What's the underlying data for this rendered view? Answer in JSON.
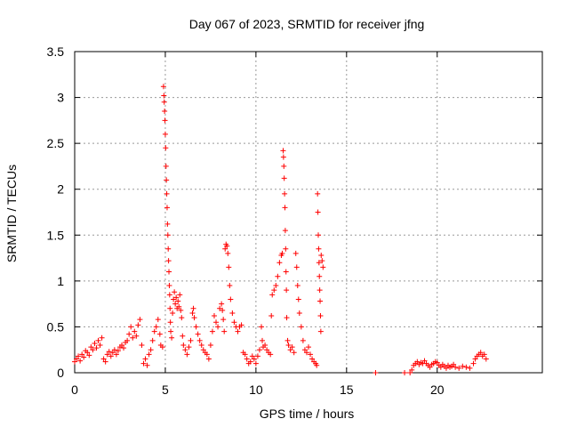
{
  "chart_data": {
    "type": "scatter",
    "title": "Day 067 of 2023, SRMTID for receiver jfng",
    "xlabel": "GPS time / hours",
    "ylabel": "SRMTID / TECUs",
    "xlim": [
      0,
      25.8
    ],
    "ylim": [
      0,
      3.5
    ],
    "xticks": [
      0,
      5,
      10,
      15,
      20
    ],
    "yticks": [
      0,
      0.5,
      1,
      1.5,
      2,
      2.5,
      3,
      3.5
    ],
    "xtick_labels": [
      "0",
      "5",
      "10",
      "15",
      "20"
    ],
    "ytick_labels": [
      "0",
      "0.5",
      "1",
      "1.5",
      "2",
      "2.5",
      "3",
      "3.5"
    ],
    "grid": true,
    "marker": "+",
    "color": "#ff0000",
    "series": [
      {
        "name": "SRMTID",
        "points": [
          [
            0.0,
            0.12
          ],
          [
            0.1,
            0.15
          ],
          [
            0.2,
            0.18
          ],
          [
            0.3,
            0.13
          ],
          [
            0.4,
            0.2
          ],
          [
            0.5,
            0.17
          ],
          [
            0.6,
            0.24
          ],
          [
            0.7,
            0.22
          ],
          [
            0.8,
            0.19
          ],
          [
            0.9,
            0.28
          ],
          [
            1.0,
            0.25
          ],
          [
            1.1,
            0.32
          ],
          [
            1.2,
            0.27
          ],
          [
            1.3,
            0.35
          ],
          [
            1.4,
            0.3
          ],
          [
            1.5,
            0.38
          ],
          [
            1.6,
            0.15
          ],
          [
            1.7,
            0.12
          ],
          [
            1.8,
            0.2
          ],
          [
            1.9,
            0.23
          ],
          [
            2.0,
            0.18
          ],
          [
            2.1,
            0.22
          ],
          [
            2.2,
            0.25
          ],
          [
            2.3,
            0.2
          ],
          [
            2.4,
            0.24
          ],
          [
            2.5,
            0.28
          ],
          [
            2.6,
            0.3
          ],
          [
            2.7,
            0.27
          ],
          [
            2.8,
            0.33
          ],
          [
            2.9,
            0.35
          ],
          [
            3.0,
            0.42
          ],
          [
            3.1,
            0.5
          ],
          [
            3.2,
            0.38
          ],
          [
            3.3,
            0.45
          ],
          [
            3.4,
            0.4
          ],
          [
            3.5,
            0.52
          ],
          [
            3.6,
            0.58
          ],
          [
            3.7,
            0.3
          ],
          [
            3.8,
            0.1
          ],
          [
            3.9,
            0.15
          ],
          [
            4.0,
            0.08
          ],
          [
            4.1,
            0.2
          ],
          [
            4.2,
            0.25
          ],
          [
            4.3,
            0.35
          ],
          [
            4.4,
            0.45
          ],
          [
            4.5,
            0.5
          ],
          [
            4.6,
            0.58
          ],
          [
            4.7,
            0.42
          ],
          [
            4.75,
            0.3
          ],
          [
            4.85,
            0.28
          ],
          [
            4.9,
            3.12
          ],
          [
            4.92,
            3.02
          ],
          [
            4.94,
            2.95
          ],
          [
            4.96,
            2.85
          ],
          [
            4.98,
            2.75
          ],
          [
            5.0,
            2.6
          ],
          [
            5.02,
            2.45
          ],
          [
            5.04,
            2.25
          ],
          [
            5.06,
            2.1
          ],
          [
            5.08,
            1.95
          ],
          [
            5.1,
            1.8
          ],
          [
            5.12,
            1.62
          ],
          [
            5.14,
            1.5
          ],
          [
            5.16,
            1.35
          ],
          [
            5.18,
            1.22
          ],
          [
            5.2,
            1.1
          ],
          [
            5.22,
            0.95
          ],
          [
            5.24,
            0.85
          ],
          [
            5.26,
            0.7
          ],
          [
            5.28,
            0.55
          ],
          [
            5.3,
            0.45
          ],
          [
            5.35,
            0.38
          ],
          [
            5.4,
            0.65
          ],
          [
            5.45,
            0.8
          ],
          [
            5.5,
            0.88
          ],
          [
            5.55,
            0.75
          ],
          [
            5.6,
            0.82
          ],
          [
            5.65,
            0.7
          ],
          [
            5.7,
            0.78
          ],
          [
            5.75,
            0.72
          ],
          [
            5.8,
            0.85
          ],
          [
            5.85,
            0.68
          ],
          [
            5.9,
            0.6
          ],
          [
            5.95,
            0.4
          ],
          [
            6.0,
            0.3
          ],
          [
            6.1,
            0.25
          ],
          [
            6.2,
            0.2
          ],
          [
            6.3,
            0.28
          ],
          [
            6.4,
            0.35
          ],
          [
            6.5,
            0.65
          ],
          [
            6.55,
            0.7
          ],
          [
            6.6,
            0.6
          ],
          [
            6.7,
            0.5
          ],
          [
            6.8,
            0.42
          ],
          [
            6.9,
            0.35
          ],
          [
            7.0,
            0.3
          ],
          [
            7.1,
            0.25
          ],
          [
            7.2,
            0.22
          ],
          [
            7.3,
            0.2
          ],
          [
            7.4,
            0.15
          ],
          [
            7.5,
            0.3
          ],
          [
            7.6,
            0.45
          ],
          [
            7.7,
            0.62
          ],
          [
            7.8,
            0.55
          ],
          [
            7.9,
            0.5
          ],
          [
            8.0,
            0.7
          ],
          [
            8.1,
            0.75
          ],
          [
            8.15,
            0.68
          ],
          [
            8.2,
            0.58
          ],
          [
            8.25,
            0.45
          ],
          [
            8.3,
            1.35
          ],
          [
            8.35,
            1.4
          ],
          [
            8.4,
            1.38
          ],
          [
            8.45,
            1.3
          ],
          [
            8.5,
            1.15
          ],
          [
            8.55,
            0.95
          ],
          [
            8.6,
            0.8
          ],
          [
            8.7,
            0.65
          ],
          [
            8.8,
            0.55
          ],
          [
            8.9,
            0.5
          ],
          [
            9.0,
            0.45
          ],
          [
            9.1,
            0.5
          ],
          [
            9.2,
            0.52
          ],
          [
            9.3,
            0.22
          ],
          [
            9.4,
            0.2
          ],
          [
            9.5,
            0.15
          ],
          [
            9.6,
            0.1
          ],
          [
            9.7,
            0.12
          ],
          [
            9.8,
            0.18
          ],
          [
            9.9,
            0.15
          ],
          [
            10.0,
            0.1
          ],
          [
            10.1,
            0.18
          ],
          [
            10.2,
            0.25
          ],
          [
            10.3,
            0.5
          ],
          [
            10.35,
            0.35
          ],
          [
            10.4,
            0.28
          ],
          [
            10.5,
            0.3
          ],
          [
            10.6,
            0.25
          ],
          [
            10.7,
            0.22
          ],
          [
            10.8,
            0.2
          ],
          [
            10.85,
            0.62
          ],
          [
            10.9,
            0.85
          ],
          [
            11.0,
            0.9
          ],
          [
            11.1,
            0.95
          ],
          [
            11.2,
            1.05
          ],
          [
            11.3,
            1.2
          ],
          [
            11.4,
            1.28
          ],
          [
            11.45,
            1.3
          ],
          [
            11.5,
            2.42
          ],
          [
            11.52,
            2.35
          ],
          [
            11.54,
            2.25
          ],
          [
            11.56,
            2.12
          ],
          [
            11.58,
            1.95
          ],
          [
            11.6,
            1.8
          ],
          [
            11.62,
            1.55
          ],
          [
            11.64,
            1.35
          ],
          [
            11.66,
            1.1
          ],
          [
            11.68,
            0.9
          ],
          [
            11.7,
            0.6
          ],
          [
            11.75,
            0.35
          ],
          [
            11.8,
            0.3
          ],
          [
            11.9,
            0.25
          ],
          [
            12.0,
            0.28
          ],
          [
            12.1,
            0.22
          ],
          [
            12.2,
            1.3
          ],
          [
            12.25,
            1.15
          ],
          [
            12.3,
            0.95
          ],
          [
            12.35,
            0.8
          ],
          [
            12.4,
            0.65
          ],
          [
            12.5,
            0.5
          ],
          [
            12.6,
            0.35
          ],
          [
            12.7,
            0.25
          ],
          [
            12.8,
            0.22
          ],
          [
            12.9,
            0.28
          ],
          [
            13.0,
            0.2
          ],
          [
            13.1,
            0.15
          ],
          [
            13.2,
            0.12
          ],
          [
            13.3,
            0.1
          ],
          [
            13.35,
            0.08
          ],
          [
            13.4,
            1.95
          ],
          [
            13.42,
            1.75
          ],
          [
            13.44,
            1.5
          ],
          [
            13.46,
            1.35
          ],
          [
            13.48,
            1.2
          ],
          [
            13.5,
            1.05
          ],
          [
            13.52,
            0.9
          ],
          [
            13.54,
            0.78
          ],
          [
            13.56,
            0.62
          ],
          [
            13.58,
            0.45
          ],
          [
            13.6,
            1.28
          ],
          [
            13.65,
            1.22
          ],
          [
            13.7,
            1.15
          ],
          [
            16.6,
            0.0
          ],
          [
            18.2,
            0.0
          ],
          [
            18.5,
            0.0
          ],
          [
            18.6,
            0.03
          ],
          [
            18.7,
            0.08
          ],
          [
            18.8,
            0.1
          ],
          [
            18.9,
            0.12
          ],
          [
            19.0,
            0.09
          ],
          [
            19.1,
            0.11
          ],
          [
            19.2,
            0.1
          ],
          [
            19.3,
            0.13
          ],
          [
            19.4,
            0.1
          ],
          [
            19.5,
            0.08
          ],
          [
            19.6,
            0.06
          ],
          [
            19.7,
            0.09
          ],
          [
            19.8,
            0.1
          ],
          [
            19.9,
            0.12
          ],
          [
            20.0,
            0.11
          ],
          [
            20.1,
            0.08
          ],
          [
            20.2,
            0.06
          ],
          [
            20.3,
            0.09
          ],
          [
            20.4,
            0.07
          ],
          [
            20.5,
            0.05
          ],
          [
            20.6,
            0.08
          ],
          [
            20.7,
            0.06
          ],
          [
            20.8,
            0.07
          ],
          [
            20.9,
            0.09
          ],
          [
            21.0,
            0.06
          ],
          [
            21.2,
            0.05
          ],
          [
            21.4,
            0.07
          ],
          [
            21.6,
            0.06
          ],
          [
            21.8,
            0.05
          ],
          [
            22.0,
            0.1
          ],
          [
            22.1,
            0.15
          ],
          [
            22.2,
            0.18
          ],
          [
            22.3,
            0.2
          ],
          [
            22.4,
            0.22
          ],
          [
            22.5,
            0.18
          ],
          [
            22.6,
            0.2
          ],
          [
            22.7,
            0.15
          ]
        ]
      }
    ]
  }
}
